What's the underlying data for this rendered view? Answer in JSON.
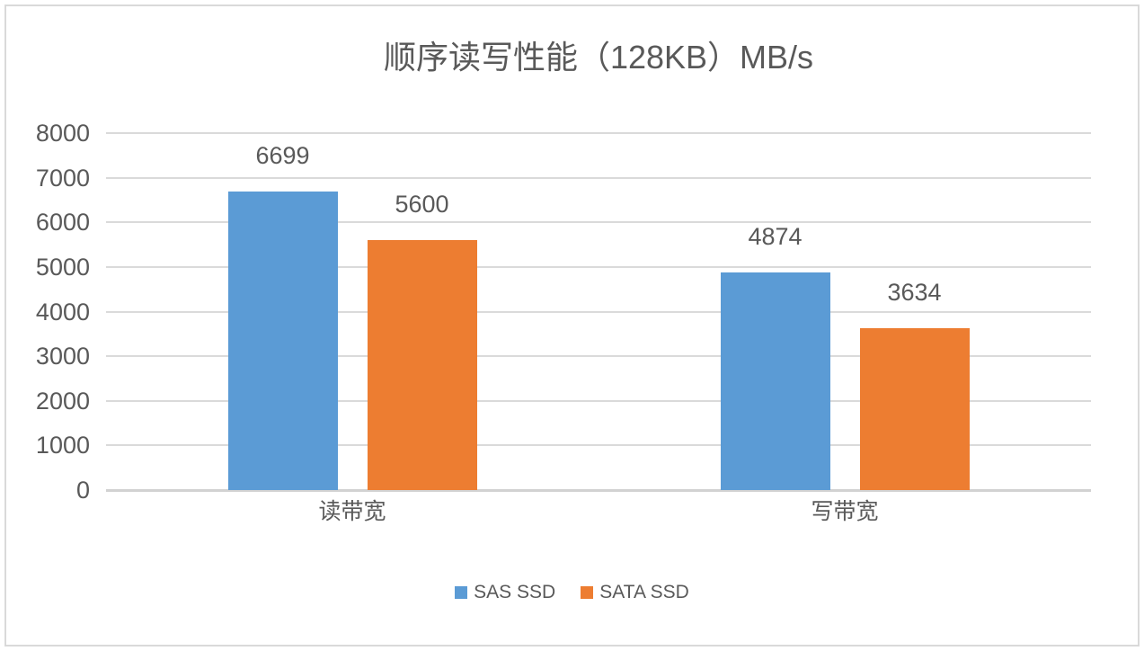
{
  "frame": {
    "background": "#FFFFFF",
    "border_color": "#D9D9D9"
  },
  "chart_data": {
    "type": "bar",
    "title": "顺序读写性能（128KB）MB/s",
    "categories": [
      "读带宽",
      "写带宽"
    ],
    "series": [
      {
        "name": "SAS SSD",
        "color": "#5B9BD5",
        "values": [
          6699,
          4874
        ]
      },
      {
        "name": "SATA SSD",
        "color": "#ED7D31",
        "values": [
          5600,
          3634
        ]
      }
    ],
    "xlabel": "",
    "ylabel": "",
    "ylim": [
      0,
      8000
    ],
    "y_step": 1000,
    "grid": true,
    "data_labels": true,
    "legend_position": "bottom",
    "text_color": "#595959",
    "gridline_color": "#D9D9D9"
  }
}
